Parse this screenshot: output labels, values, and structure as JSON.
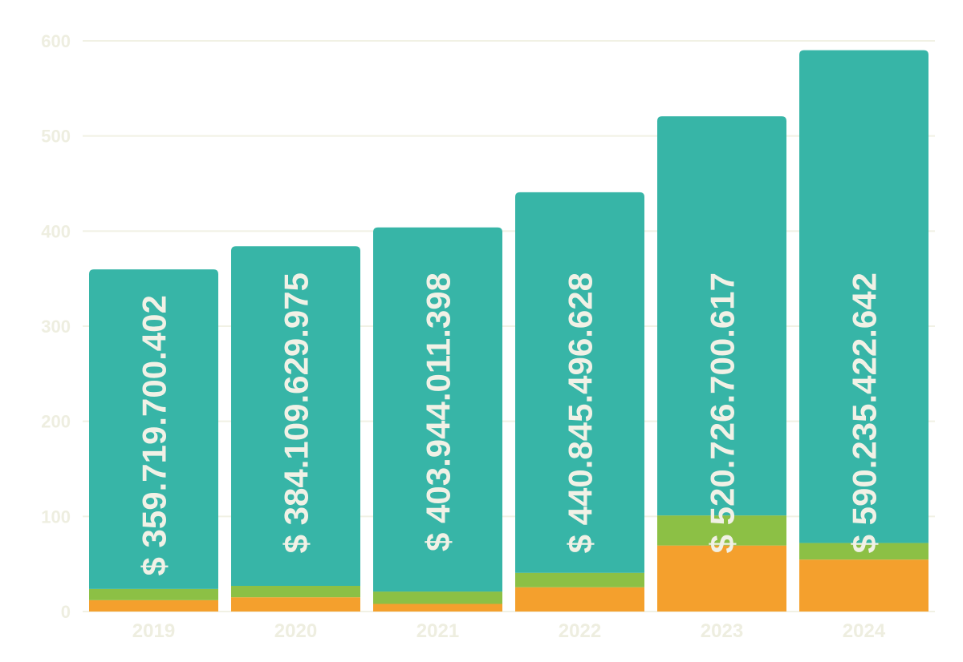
{
  "chart_data": {
    "type": "bar",
    "stacked": true,
    "title": "",
    "xlabel": "",
    "ylabel": "",
    "ylim": [
      0,
      600
    ],
    "yticks": [
      0,
      100,
      200,
      300,
      400,
      500,
      600
    ],
    "grid": true,
    "legend": "none",
    "categories": [
      "2019",
      "2020",
      "2021",
      "2022",
      "2023",
      "2024"
    ],
    "series": [
      {
        "color": "#f4a02d",
        "values": [
          11.9,
          15.0,
          8.0,
          25.5,
          69.4,
          54.6
        ]
      },
      {
        "color": "#8cc045",
        "values": [
          11.8,
          12.0,
          13.0,
          15.2,
          31.6,
          17.4
        ]
      },
      {
        "color": "#37b5a7",
        "values": [
          336.0,
          357.1,
          382.9,
          400.1,
          419.7,
          518.2
        ]
      }
    ],
    "data_labels": [
      "$ 359.719.700.402",
      "$ 384.109.629.975",
      "$ 403.944.011.398",
      "$ 440.845.496.628",
      "$ 520.726.700.617",
      "$ 590.235.422.642"
    ]
  }
}
